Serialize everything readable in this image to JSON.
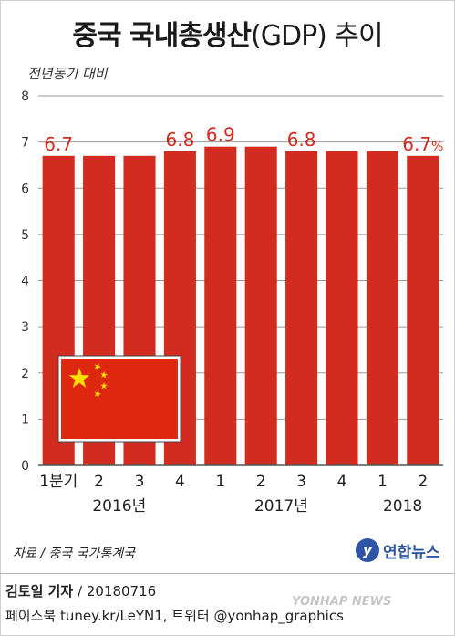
{
  "title_main": "중국 국내총생산",
  "title_paren": "(GDP) 추이",
  "subtitle": "전년동기 대비",
  "source": "자료 / 중국 국가통계국",
  "logo_text": "연합뉴스",
  "byline_name": "김토일 기자",
  "byline_date": " / 20180716",
  "social": "페이스북 tuney.kr/LeYN1, 트위터 @yonhap_graphics",
  "watermark": "YONHAP NEWS",
  "colors": {
    "bar": "#d22b20",
    "label": "#d22b20",
    "grid": "#999999"
  },
  "chart_data": {
    "type": "bar",
    "title": "중국 국내총생산(GDP) 추이",
    "ylabel": "전년동기 대비",
    "ylim": [
      0,
      8
    ],
    "yticks": [
      0,
      1,
      2,
      3,
      4,
      5,
      6,
      7,
      8
    ],
    "grid": true,
    "categories": [
      "1분기",
      "2",
      "3",
      "4",
      "1",
      "2",
      "3",
      "4",
      "1",
      "2"
    ],
    "years": [
      {
        "label": "2016년",
        "start": 0,
        "end": 3
      },
      {
        "label": "2017년",
        "start": 4,
        "end": 7
      },
      {
        "label": "2018",
        "start": 8,
        "end": 9
      }
    ],
    "values": [
      6.7,
      6.7,
      6.7,
      6.8,
      6.9,
      6.9,
      6.8,
      6.8,
      6.8,
      6.7
    ],
    "data_labels": [
      "6.7",
      "",
      "",
      "6.8",
      "6.9",
      "",
      "6.8",
      "",
      "",
      "6.7"
    ],
    "unit": "%",
    "unit_label_index": 9
  }
}
